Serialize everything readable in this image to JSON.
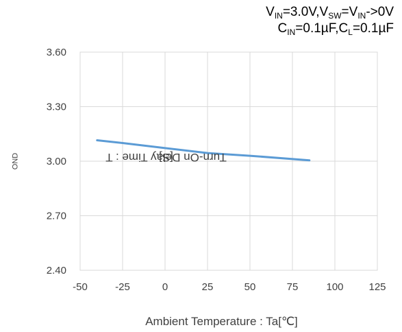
{
  "conditions": {
    "line1": {
      "v": "V",
      "in": "IN",
      "eq1": "=3.0V,V",
      "sw": "SW",
      "eq2": "=V",
      "in2": "IN",
      "tail": "->0V"
    },
    "line2": {
      "c": "C",
      "in": "IN",
      "eq1": "=0.1µF,C",
      "l": "L",
      "tail": "=0.1µF"
    }
  },
  "chart_data": {
    "type": "line",
    "title": "",
    "xlabel": "Ambient Temperature : Ta[℃]",
    "ylabel_main": "Turn-On Delay Time : T",
    "ylabel_sub": "OND",
    "ylabel_unit": " [S]",
    "xlim": [
      -50,
      125
    ],
    "ylim": [
      2.4,
      3.6
    ],
    "xticks": [
      "-50",
      "-25",
      "0",
      "25",
      "50",
      "75",
      "100",
      "125"
    ],
    "yticks": [
      "2.40",
      "2.70",
      "3.00",
      "3.30",
      "3.60"
    ],
    "grid": true,
    "series": [
      {
        "color": "#5b9bd5",
        "x": [
          -40,
          -25,
          0,
          25,
          50,
          85
        ],
        "y": [
          3.115,
          3.1,
          3.072,
          3.045,
          3.03,
          3.005
        ]
      }
    ]
  }
}
